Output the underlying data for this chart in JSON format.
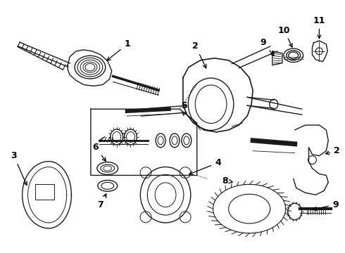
{
  "background_color": "#ffffff",
  "line_color": "#1a1a1a",
  "line_width": 1.0,
  "fig_width": 4.9,
  "fig_height": 3.6,
  "dpi": 100
}
